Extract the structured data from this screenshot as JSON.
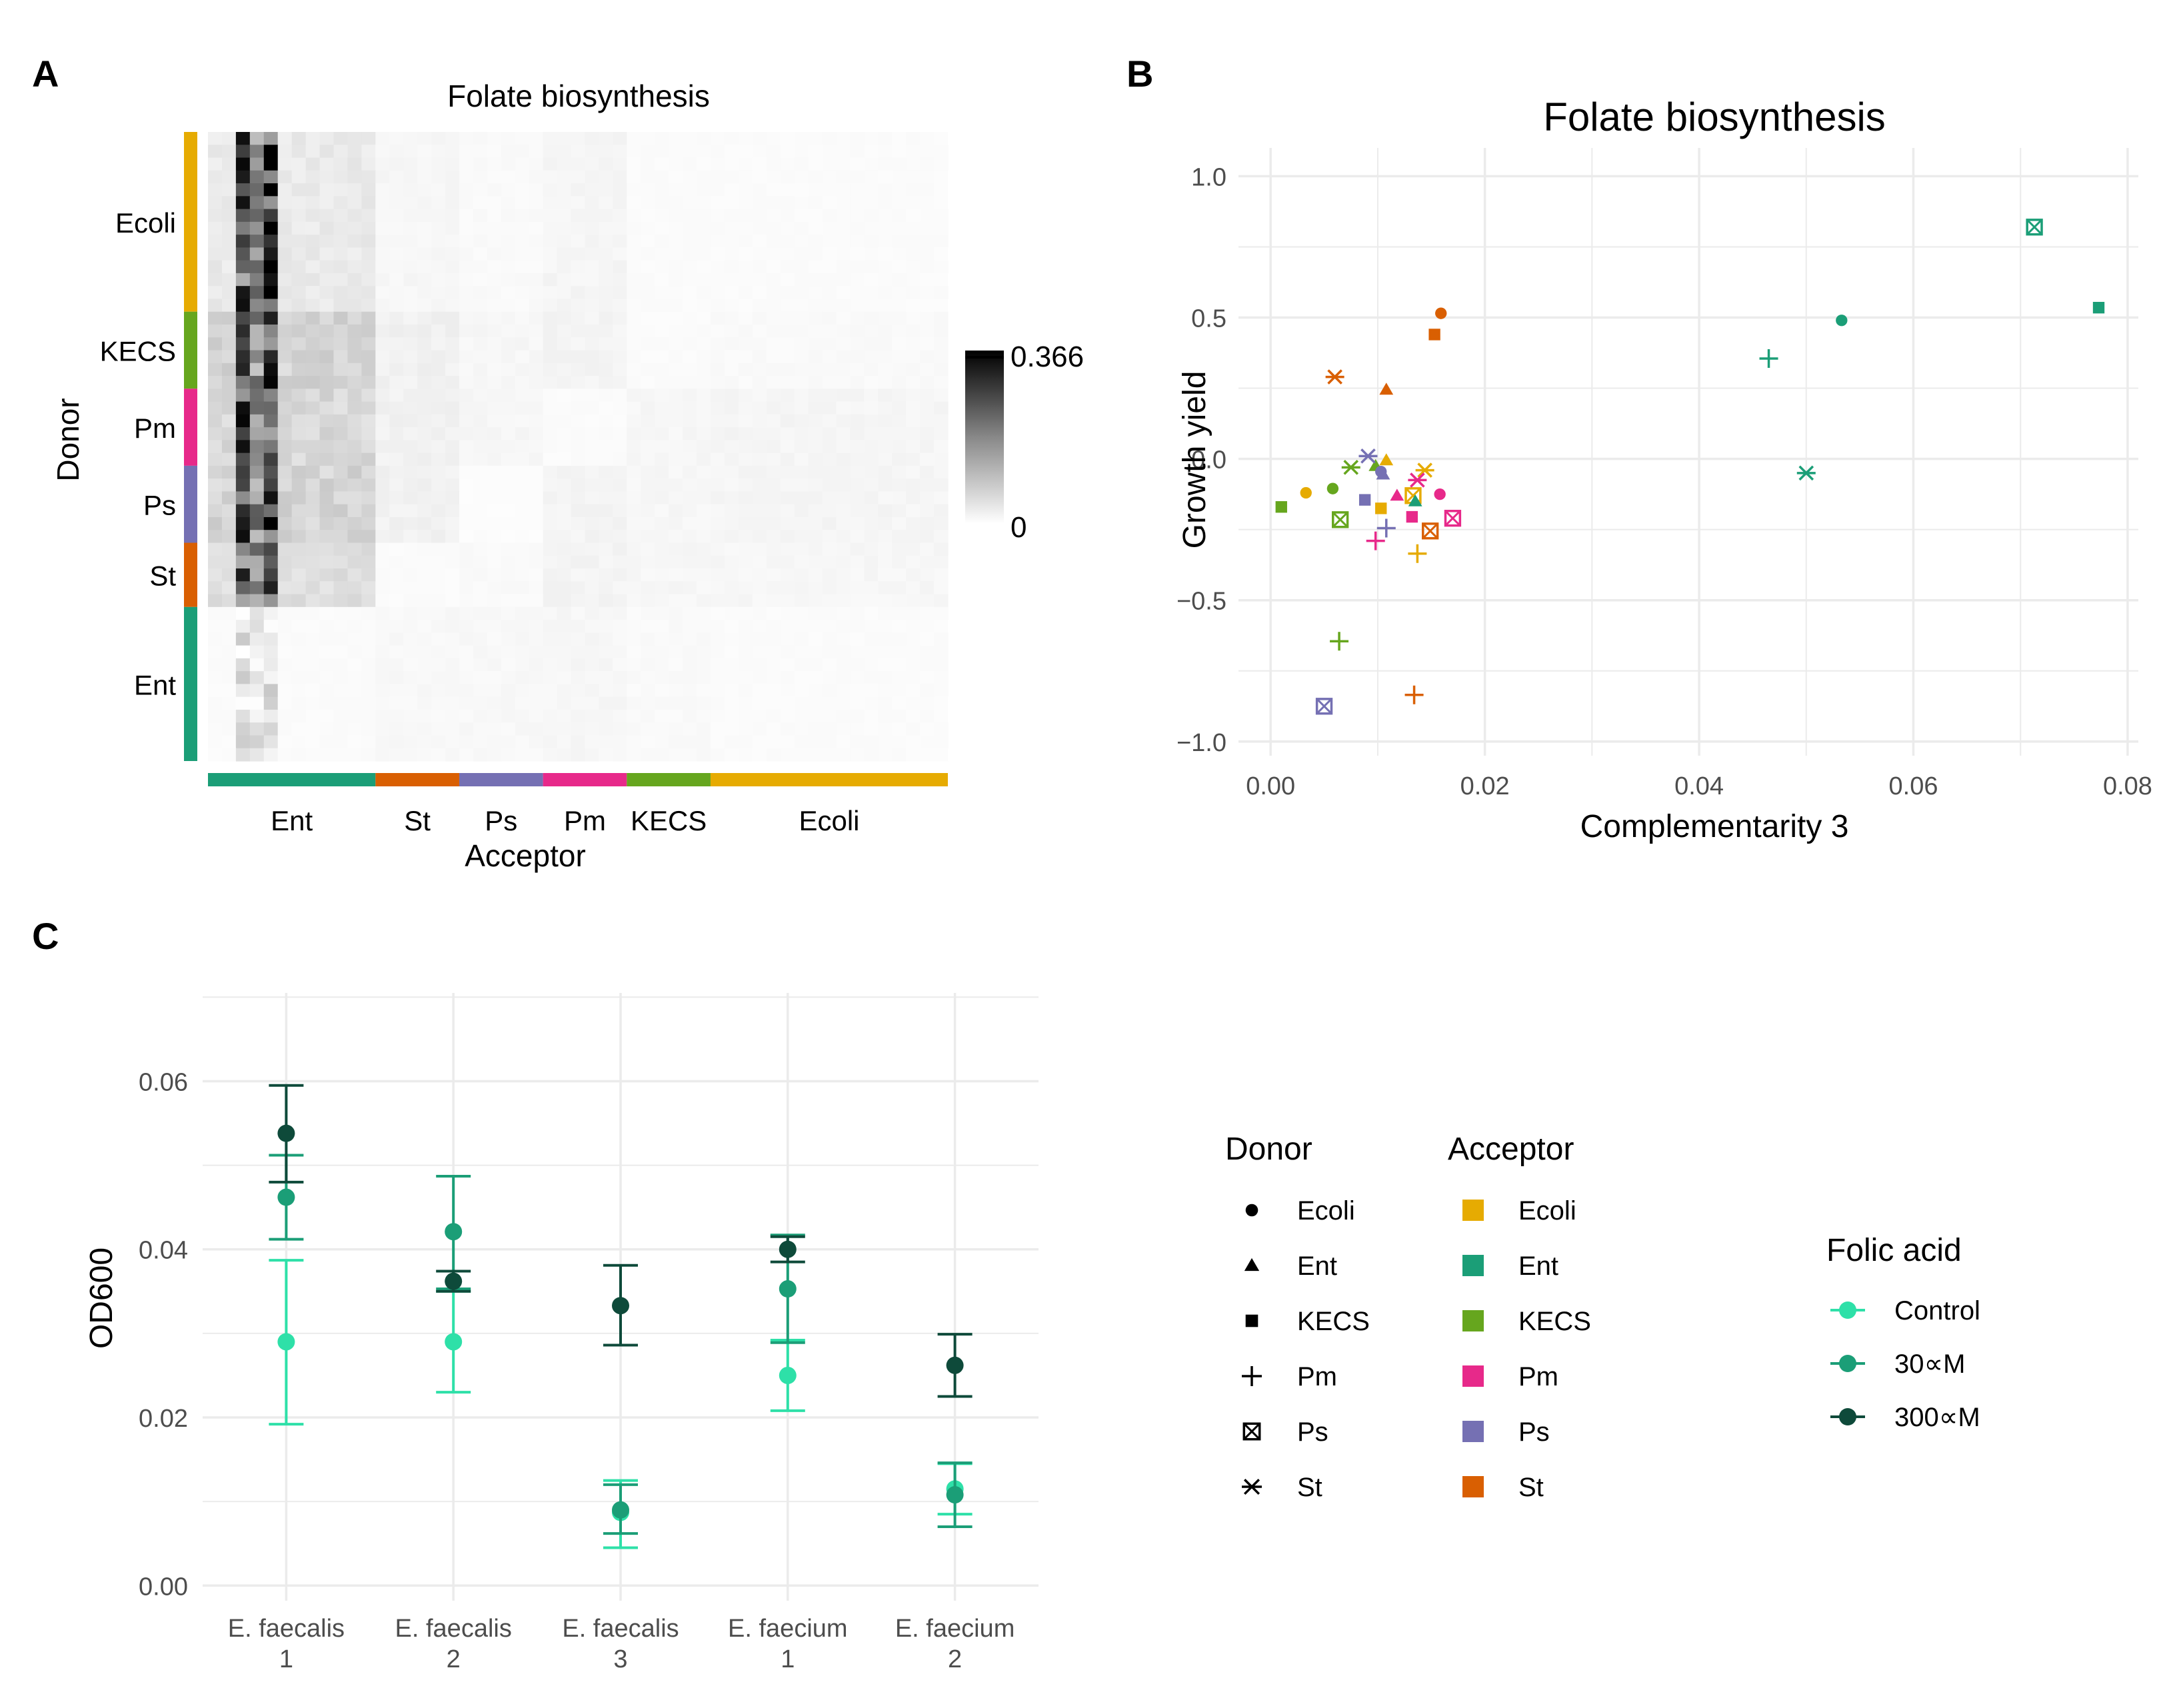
{
  "colors": {
    "Ecoli": "#E6AB02",
    "Ent": "#1B9E77",
    "KECS": "#66A61E",
    "Pm": "#E7298A",
    "Ps": "#7570B3",
    "St": "#D95F02",
    "control": "#2EE0A8",
    "uM30": "#1B9E77",
    "uM300": "#0E4A3A",
    "grid": "#EBEBEB",
    "text": "#000000",
    "tick": "#4D4D4D"
  },
  "chart_data": [
    {
      "panel": "A",
      "type": "heatmap",
      "title": "Folate biosynthesis",
      "xlabel": "Acceptor",
      "ylabel": "Donor",
      "row_groups": [
        "Ecoli",
        "KECS",
        "Pm",
        "Ps",
        "St",
        "Ent"
      ],
      "row_group_sizes": [
        14,
        6,
        6,
        6,
        5,
        12
      ],
      "col_groups": [
        "Ent",
        "St",
        "Ps",
        "Pm",
        "KECS",
        "Ecoli"
      ],
      "col_group_sizes": [
        12,
        6,
        6,
        6,
        6,
        17
      ],
      "group_values": [
        [
          0.03,
          0.012,
          0.008,
          0.014,
          0.006,
          0.006
        ],
        [
          0.06,
          0.02,
          0.012,
          0.016,
          0.006,
          0.008
        ],
        [
          0.055,
          0.02,
          0.012,
          0.006,
          0.012,
          0.014
        ],
        [
          0.06,
          0.02,
          0.004,
          0.016,
          0.012,
          0.014
        ],
        [
          0.045,
          0.006,
          0.008,
          0.016,
          0.012,
          0.012
        ],
        [
          0.006,
          0.01,
          0.01,
          0.012,
          0.008,
          0.006
        ]
      ],
      "dark_column_values": [
        0.3,
        0.2,
        0.35
      ],
      "legend": {
        "max_label": "0.366",
        "min_label": "0",
        "max": 0.366,
        "min": 0
      }
    },
    {
      "panel": "B",
      "type": "scatter",
      "title": "Folate biosynthesis",
      "xlabel": "Complementarity 3",
      "ylabel": "Growth yield",
      "xlim": [
        -0.003,
        0.081
      ],
      "ylim": [
        -1.05,
        1.1
      ],
      "x_ticks": [
        "0.00",
        "0.02",
        "0.04",
        "0.06",
        "0.08"
      ],
      "y_ticks": [
        "1.0",
        "0.5",
        "0.0",
        "−0.5",
        "−1.0"
      ],
      "x_tick_values": [
        0,
        0.02,
        0.04,
        0.06,
        0.08
      ],
      "y_tick_values": [
        1.0,
        0.5,
        0.0,
        -0.5,
        -1.0
      ],
      "points": [
        {
          "x": 0.0713,
          "y": 0.82,
          "donor": "Ps",
          "acceptor": "Ent"
        },
        {
          "x": 0.0773,
          "y": 0.535,
          "donor": "KECS",
          "acceptor": "Ent"
        },
        {
          "x": 0.0533,
          "y": 0.49,
          "donor": "Ecoli",
          "acceptor": "Ent"
        },
        {
          "x": 0.0465,
          "y": 0.355,
          "donor": "Pm",
          "acceptor": "Ent"
        },
        {
          "x": 0.05,
          "y": -0.05,
          "donor": "St",
          "acceptor": "Ent"
        },
        {
          "x": 0.0159,
          "y": 0.515,
          "donor": "Ecoli",
          "acceptor": "St"
        },
        {
          "x": 0.0153,
          "y": 0.44,
          "donor": "KECS",
          "acceptor": "St"
        },
        {
          "x": 0.006,
          "y": 0.29,
          "donor": "St",
          "acceptor": "St"
        },
        {
          "x": 0.0108,
          "y": 0.245,
          "donor": "Ent",
          "acceptor": "St"
        },
        {
          "x": 0.0134,
          "y": -0.835,
          "donor": "Pm",
          "acceptor": "St"
        },
        {
          "x": 0.0149,
          "y": -0.255,
          "donor": "Ps",
          "acceptor": "St"
        },
        {
          "x": 0.0108,
          "y": -0.005,
          "donor": "Ent",
          "acceptor": "Ecoli"
        },
        {
          "x": 0.0144,
          "y": -0.04,
          "donor": "St",
          "acceptor": "Ecoli"
        },
        {
          "x": 0.0033,
          "y": -0.12,
          "donor": "Ecoli",
          "acceptor": "Ecoli"
        },
        {
          "x": 0.0103,
          "y": -0.175,
          "donor": "KECS",
          "acceptor": "Ecoli"
        },
        {
          "x": 0.0137,
          "y": -0.335,
          "donor": "Pm",
          "acceptor": "Ecoli"
        },
        {
          "x": 0.0133,
          "y": -0.13,
          "donor": "Ps",
          "acceptor": "Ecoli"
        },
        {
          "x": 0.0058,
          "y": -0.105,
          "donor": "Ecoli",
          "acceptor": "KECS"
        },
        {
          "x": 0.001,
          "y": -0.17,
          "donor": "KECS",
          "acceptor": "KECS"
        },
        {
          "x": 0.0065,
          "y": -0.215,
          "donor": "Ps",
          "acceptor": "KECS"
        },
        {
          "x": 0.0064,
          "y": -0.645,
          "donor": "Pm",
          "acceptor": "KECS"
        },
        {
          "x": 0.0075,
          "y": -0.03,
          "donor": "St",
          "acceptor": "KECS"
        },
        {
          "x": 0.0098,
          "y": -0.025,
          "donor": "Ent",
          "acceptor": "KECS"
        },
        {
          "x": 0.0158,
          "y": -0.125,
          "donor": "Ecoli",
          "acceptor": "Pm"
        },
        {
          "x": 0.0118,
          "y": -0.13,
          "donor": "Ent",
          "acceptor": "Pm"
        },
        {
          "x": 0.0132,
          "y": -0.205,
          "donor": "KECS",
          "acceptor": "Pm"
        },
        {
          "x": 0.0098,
          "y": -0.29,
          "donor": "Pm",
          "acceptor": "Pm"
        },
        {
          "x": 0.017,
          "y": -0.21,
          "donor": "Ps",
          "acceptor": "Pm"
        },
        {
          "x": 0.0137,
          "y": -0.075,
          "donor": "St",
          "acceptor": "Pm"
        },
        {
          "x": 0.0103,
          "y": -0.045,
          "donor": "Ecoli",
          "acceptor": "Ps"
        },
        {
          "x": 0.0088,
          "y": -0.145,
          "donor": "KECS",
          "acceptor": "Ps"
        },
        {
          "x": 0.0105,
          "y": -0.055,
          "donor": "Ent",
          "acceptor": "Ps"
        },
        {
          "x": 0.0091,
          "y": 0.01,
          "donor": "St",
          "acceptor": "Ps"
        },
        {
          "x": 0.0108,
          "y": -0.245,
          "donor": "Pm",
          "acceptor": "Ps"
        },
        {
          "x": 0.005,
          "y": -0.875,
          "donor": "Ps",
          "acceptor": "Ps"
        },
        {
          "x": 0.0135,
          "y": -0.15,
          "donor": "Ent",
          "acceptor": "Ent"
        }
      ],
      "legend": {
        "donor_title": "Donor",
        "acceptor_title": "Acceptor",
        "donor_items": [
          {
            "label": "Ecoli",
            "shape": "circle"
          },
          {
            "label": "Ent",
            "shape": "triangle"
          },
          {
            "label": "KECS",
            "shape": "square"
          },
          {
            "label": "Pm",
            "shape": "plus"
          },
          {
            "label": "Ps",
            "shape": "boxcross"
          },
          {
            "label": "St",
            "shape": "asterisk"
          }
        ],
        "acceptor_items": [
          "Ecoli",
          "Ent",
          "KECS",
          "Pm",
          "Ps",
          "St"
        ]
      }
    },
    {
      "panel": "C",
      "type": "scatter",
      "subtype": "pointrange",
      "title": "",
      "xlabel": "",
      "ylabel": "OD600",
      "ylim": [
        -0.0018,
        0.0705
      ],
      "y_ticks": [
        "0.00",
        "0.02",
        "0.04",
        "0.06"
      ],
      "y_tick_values": [
        0,
        0.02,
        0.04,
        0.06
      ],
      "categories": [
        [
          "E. faecalis",
          "1"
        ],
        [
          "E. faecalis",
          "2"
        ],
        [
          "E. faecalis",
          "3"
        ],
        [
          "E. faecium",
          "1"
        ],
        [
          "E. faecium",
          "2"
        ]
      ],
      "legend_title": "Folic acid",
      "series": [
        {
          "name": "Control",
          "color_key": "control",
          "values": [
            0.029,
            0.029,
            0.0087,
            0.025,
            0.0115
          ],
          "lower": [
            0.0192,
            0.023,
            0.0045,
            0.0208,
            0.0085
          ],
          "upper": [
            0.0387,
            0.035,
            0.0125,
            0.0292,
            0.0145
          ]
        },
        {
          "name": "30∝M",
          "color_key": "uM30",
          "values": [
            0.0462,
            0.0421,
            0.009,
            0.0353,
            0.0108
          ],
          "lower": [
            0.0412,
            0.0353,
            0.0062,
            0.0289,
            0.007
          ],
          "upper": [
            0.0512,
            0.0487,
            0.012,
            0.0417,
            0.0146
          ]
        },
        {
          "name": "300∝M",
          "color_key": "uM300",
          "values": [
            0.0538,
            0.0362,
            0.0333,
            0.04,
            0.0262
          ],
          "lower": [
            0.048,
            0.035,
            0.0286,
            0.0385,
            0.0225
          ],
          "upper": [
            0.0595,
            0.0374,
            0.0381,
            0.0415,
            0.0299
          ]
        }
      ]
    }
  ],
  "panels": {
    "A": {
      "letter": "A"
    },
    "B": {
      "letter": "B"
    },
    "C": {
      "letter": "C"
    }
  }
}
